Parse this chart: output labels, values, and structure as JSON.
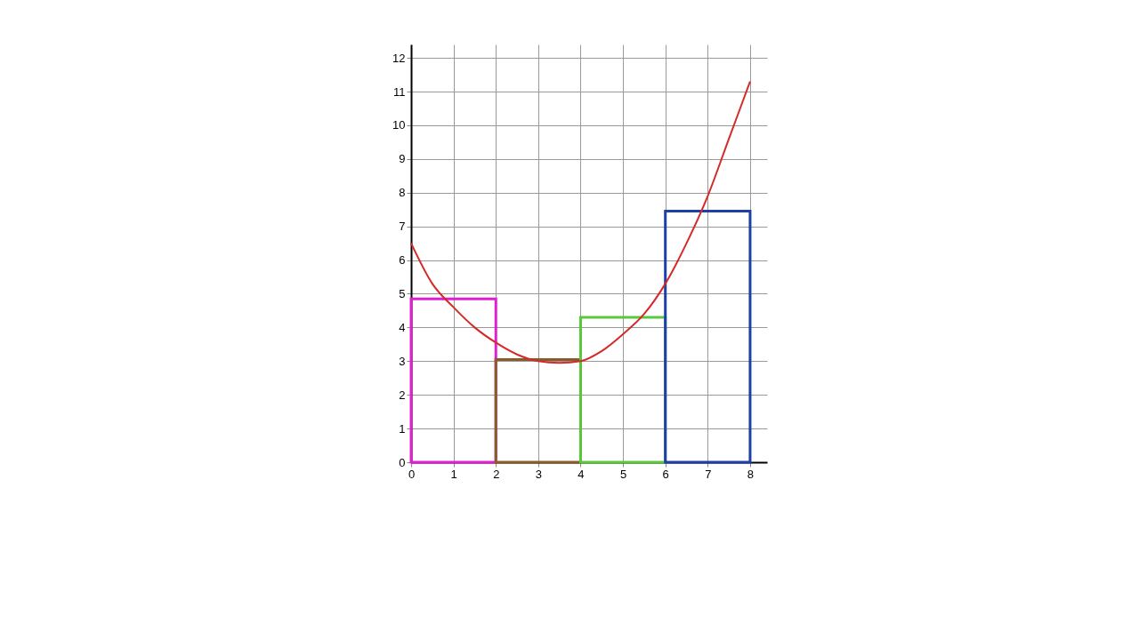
{
  "chart_data": {
    "type": "bar",
    "x": [
      1,
      3,
      5,
      7
    ],
    "values": [
      4.85,
      3.05,
      4.3,
      7.45
    ],
    "colors": [
      "#e020d0",
      "#8b5a2b",
      "#5ac83c",
      "#1f3fa8"
    ],
    "series": [
      {
        "type": "line",
        "color": "#d42a2a",
        "x": [
          0,
          0.5,
          1,
          1.5,
          2,
          2.5,
          3,
          3.5,
          4,
          4.5,
          5,
          5.5,
          6,
          6.5,
          7,
          7.5,
          8
        ],
        "values": [
          6.5,
          5.3,
          4.6,
          4.0,
          3.55,
          3.2,
          3.0,
          2.95,
          3.0,
          3.3,
          3.8,
          4.4,
          5.3,
          6.5,
          7.9,
          9.6,
          11.3
        ]
      }
    ],
    "xlim": [
      0,
      8.4
    ],
    "ylim": [
      0,
      12.4
    ],
    "xticks": [
      0,
      1,
      2,
      3,
      4,
      5,
      6,
      7,
      8
    ],
    "yticks": [
      0,
      1,
      2,
      3,
      4,
      5,
      6,
      7,
      8,
      9,
      10,
      11,
      12
    ],
    "grid": true
  }
}
